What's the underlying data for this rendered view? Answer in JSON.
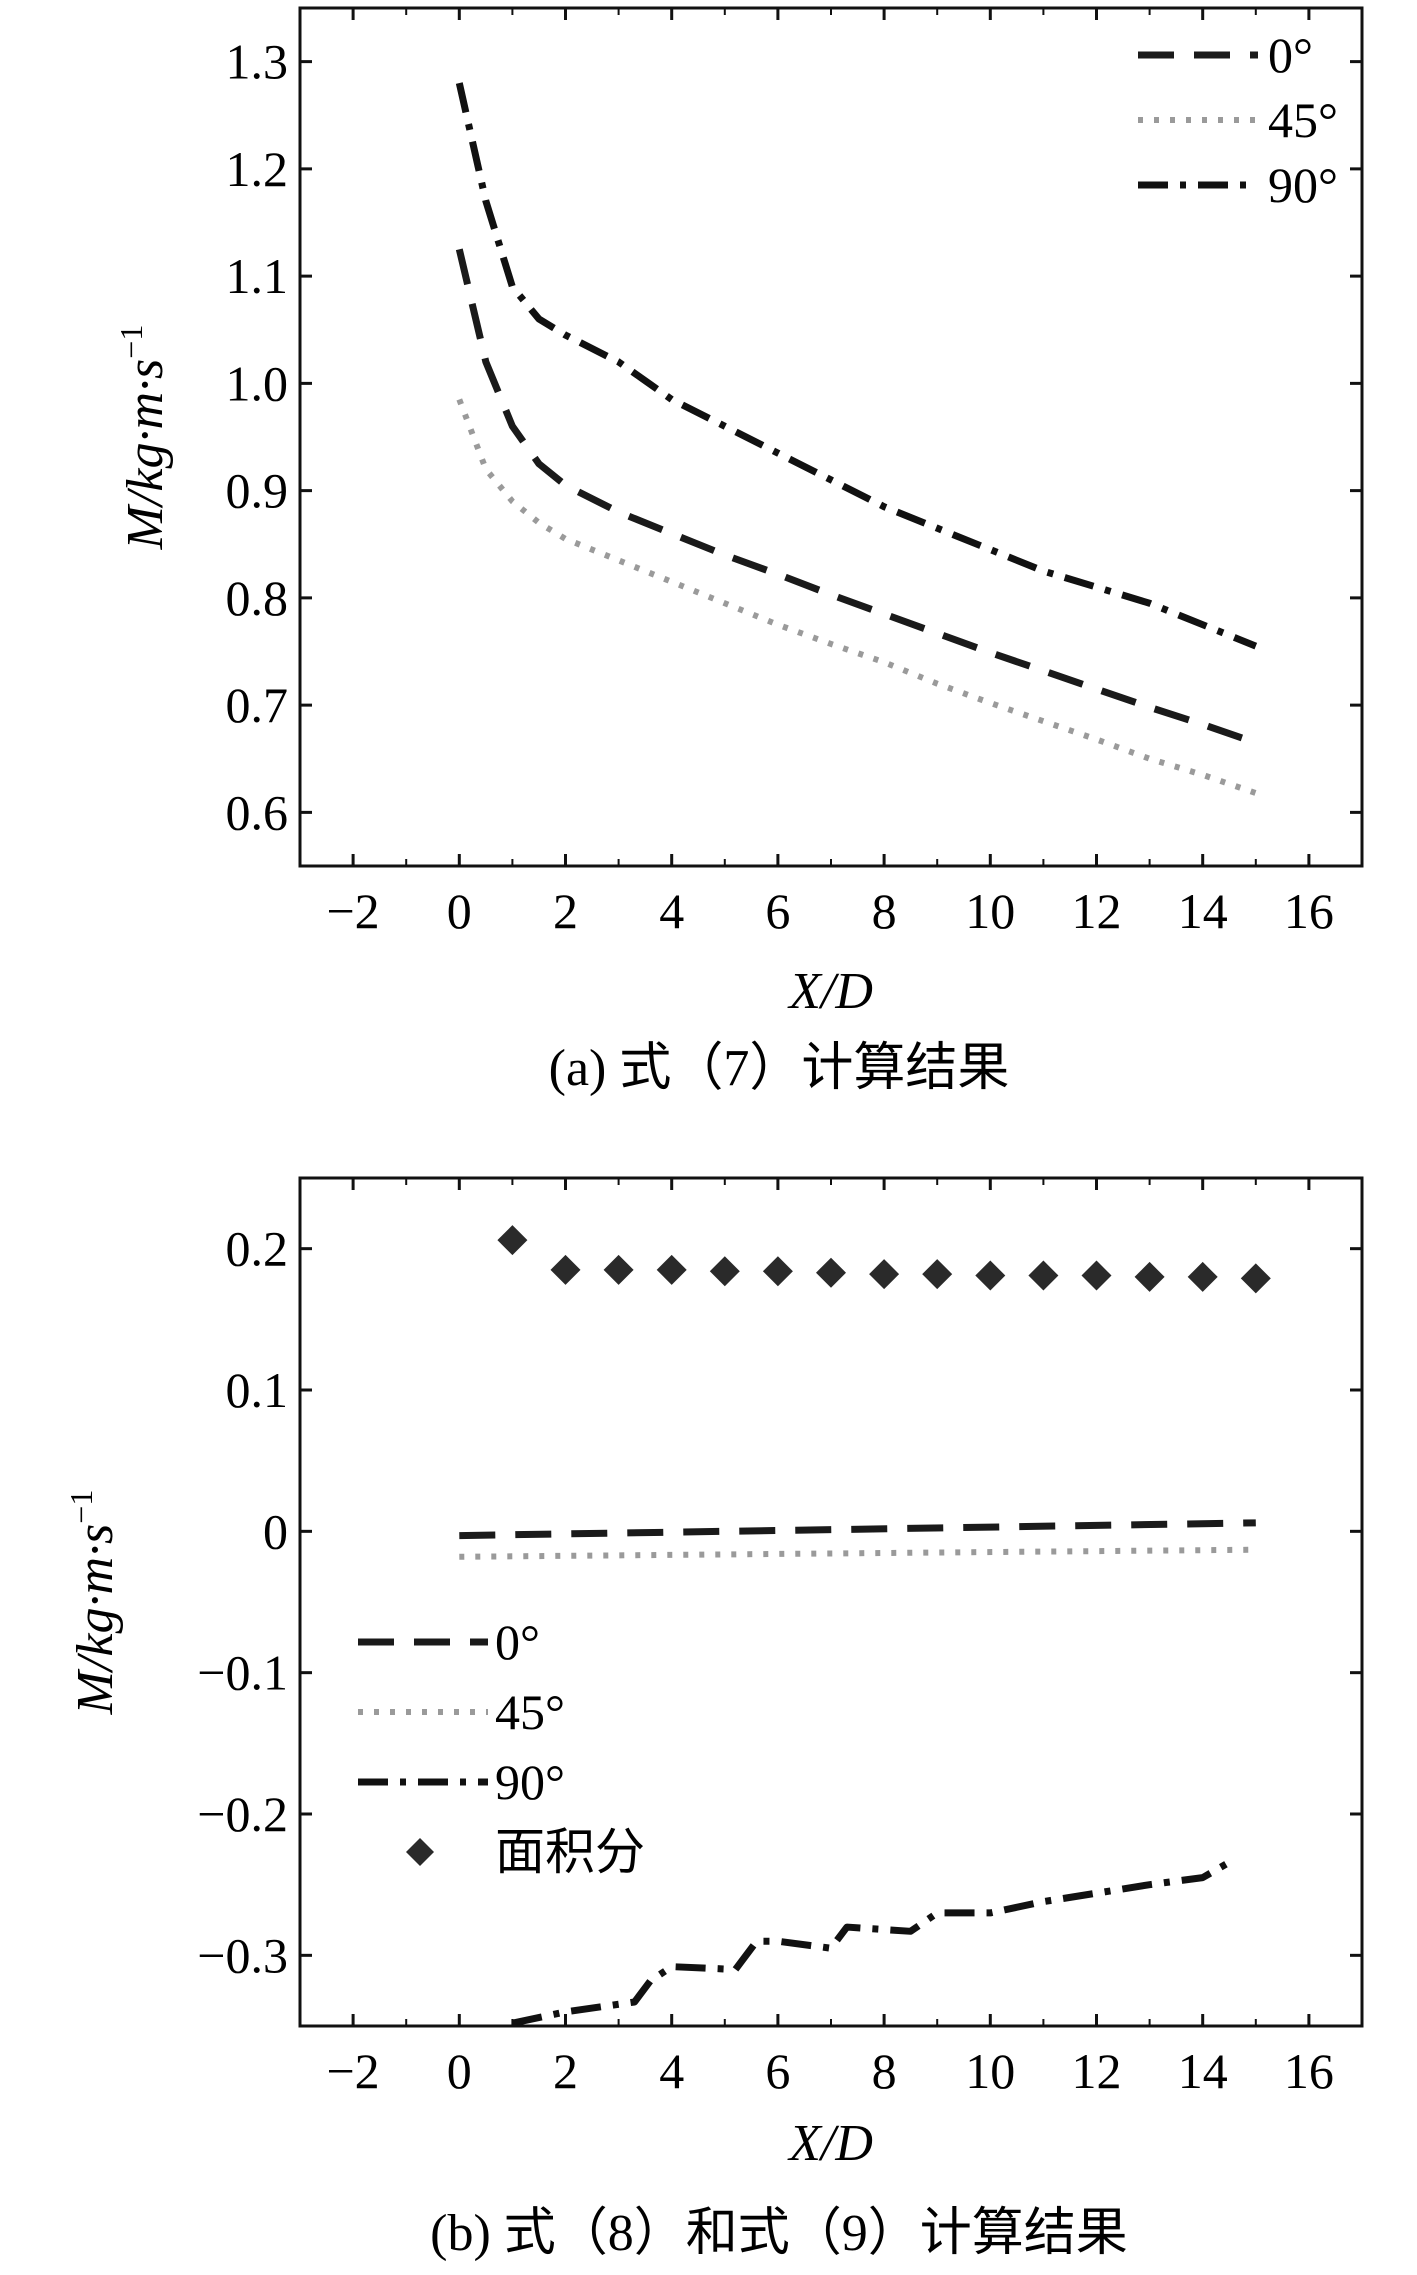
{
  "chart_data": [
    {
      "type": "line",
      "caption": "(a) 式（7）计算结果",
      "xlabel": "X/D",
      "ylabel": "M/kg·m·s",
      "ylabel_sup": "−1",
      "xlim": [
        -3,
        17
      ],
      "ylim": [
        0.55,
        1.35
      ],
      "xticks": [
        -2,
        0,
        2,
        4,
        6,
        8,
        10,
        12,
        14,
        16
      ],
      "xtick_labels": [
        "−2",
        "0",
        "2",
        "4",
        "6",
        "8",
        "10",
        "12",
        "14",
        "16"
      ],
      "yticks": [
        0.6,
        0.7,
        0.8,
        0.9,
        1.0,
        1.1,
        1.2,
        1.3
      ],
      "ytick_labels": [
        "0.6",
        "0.7",
        "0.8",
        "0.9",
        "1.0",
        "1.1",
        "1.2",
        "1.3"
      ],
      "legend_position": "top-right",
      "series": [
        {
          "name": "0°",
          "style": "dash",
          "x": [
            0,
            0.5,
            1,
            1.5,
            2,
            3,
            4,
            5,
            6,
            7,
            8,
            9,
            10,
            11,
            12,
            13,
            14,
            15
          ],
          "y": [
            1.125,
            1.02,
            0.96,
            0.925,
            0.905,
            0.88,
            0.86,
            0.84,
            0.822,
            0.803,
            0.785,
            0.767,
            0.749,
            0.732,
            0.715,
            0.698,
            0.682,
            0.665
          ]
        },
        {
          "name": "45°",
          "style": "dot",
          "x": [
            0,
            0.5,
            1,
            1.5,
            2,
            3,
            4,
            5,
            6,
            7,
            8,
            9,
            10,
            11,
            12,
            13,
            14,
            15
          ],
          "y": [
            0.985,
            0.92,
            0.89,
            0.87,
            0.855,
            0.835,
            0.815,
            0.795,
            0.775,
            0.757,
            0.74,
            0.72,
            0.702,
            0.685,
            0.668,
            0.65,
            0.635,
            0.618
          ]
        },
        {
          "name": "90°",
          "style": "dashdot",
          "x": [
            0,
            0.5,
            1,
            1.5,
            2,
            3,
            4,
            5,
            6,
            7,
            8,
            9,
            10,
            11,
            12,
            13,
            14,
            15
          ],
          "y": [
            1.28,
            1.17,
            1.09,
            1.06,
            1.045,
            1.02,
            0.985,
            0.96,
            0.935,
            0.91,
            0.885,
            0.865,
            0.845,
            0.825,
            0.81,
            0.795,
            0.775,
            0.755
          ]
        }
      ]
    },
    {
      "type": "line",
      "caption": "(b) 式（8）和式（9）计算结果",
      "xlabel": "X/D",
      "ylabel": "M/kg·m·s",
      "ylabel_sup": "−1",
      "xlim": [
        -3,
        17
      ],
      "ylim": [
        -0.35,
        0.25
      ],
      "xticks": [
        -2,
        0,
        2,
        4,
        6,
        8,
        10,
        12,
        14,
        16
      ],
      "xtick_labels": [
        "−2",
        "0",
        "2",
        "4",
        "6",
        "8",
        "10",
        "12",
        "14",
        "16"
      ],
      "yticks": [
        -0.3,
        -0.2,
        -0.1,
        0,
        0.1,
        0.2
      ],
      "ytick_labels": [
        "−0.3",
        "−0.2",
        "−0.1",
        "0",
        "0.1",
        "0.2"
      ],
      "legend_position": "center-left",
      "series": [
        {
          "name": "0°",
          "style": "dash",
          "x": [
            0,
            15
          ],
          "y": [
            -0.003,
            0.006
          ]
        },
        {
          "name": "45°",
          "style": "dot",
          "x": [
            0,
            15
          ],
          "y": [
            -0.018,
            -0.013
          ]
        },
        {
          "name": "90°",
          "style": "dashdot",
          "x": [
            1,
            2,
            3.3,
            3.6,
            4,
            5.2,
            5.6,
            6,
            7,
            7.3,
            8.5,
            9,
            10,
            11,
            12,
            13,
            14,
            14.6
          ],
          "y": [
            -0.348,
            -0.34,
            -0.333,
            -0.318,
            -0.308,
            -0.31,
            -0.29,
            -0.29,
            -0.295,
            -0.28,
            -0.283,
            -0.27,
            -0.27,
            -0.262,
            -0.256,
            -0.25,
            -0.245,
            -0.232
          ]
        },
        {
          "name": "面积分",
          "style": "marker",
          "x": [
            1,
            2,
            3,
            4,
            5,
            6,
            7,
            8,
            9,
            10,
            11,
            12,
            13,
            14,
            15
          ],
          "y": [
            0.206,
            0.185,
            0.185,
            0.185,
            0.184,
            0.184,
            0.183,
            0.182,
            0.182,
            0.181,
            0.181,
            0.181,
            0.18,
            0.18,
            0.179
          ]
        }
      ]
    }
  ]
}
